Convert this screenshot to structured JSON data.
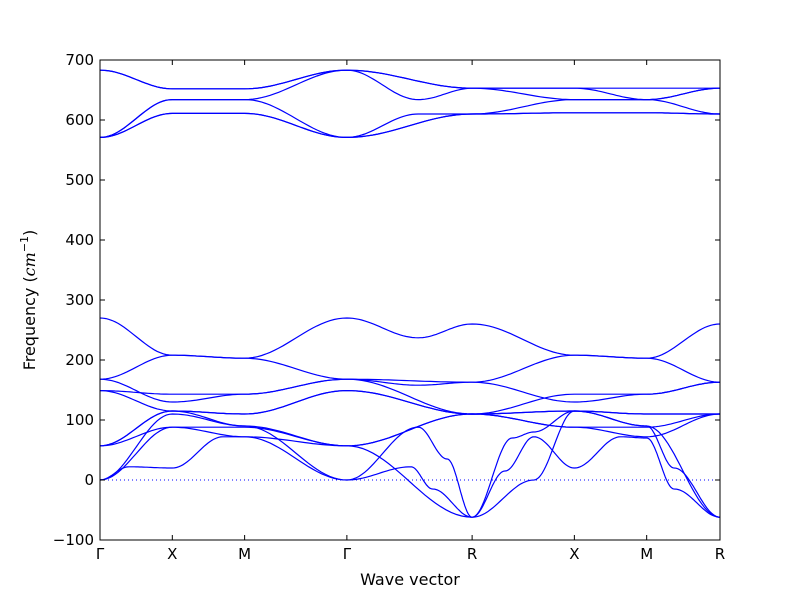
{
  "chart_data": {
    "type": "line",
    "title": "",
    "xlabel": "Wave vector",
    "ylabel_text": "Frequency (",
    "ylabel_unit": "cm",
    "ylabel_exp": "−1",
    "ylabel_close": ")",
    "ylim": [
      -100,
      700
    ],
    "yticks": [
      -100,
      0,
      100,
      200,
      300,
      400,
      500,
      600,
      700
    ],
    "ytick_labels": [
      "−100",
      "0",
      "100",
      "200",
      "300",
      "400",
      "500",
      "600",
      "700"
    ],
    "grid": false,
    "zero_line": true,
    "band_color": "#0000ff",
    "kpoints": [
      {
        "label": "Γ",
        "x": 0.0
      },
      {
        "label": "X",
        "x": 0.5
      },
      {
        "label": "M",
        "x": 1.0
      },
      {
        "label": "Γ",
        "x": 1.707
      },
      {
        "label": "R",
        "x": 2.573
      },
      {
        "label": "X",
        "x": 3.28
      },
      {
        "label": "M",
        "x": 3.78
      },
      {
        "label": "R",
        "x": 4.287
      }
    ],
    "xlim": [
      0,
      4.287
    ],
    "series": [
      {
        "x": [
          0,
          0.5,
          1.0,
          1.707,
          2.573,
          3.28,
          3.78,
          4.287
        ],
        "y": [
          683,
          652,
          652,
          683,
          653,
          653,
          653,
          653
        ]
      },
      {
        "x": [
          0,
          0.5,
          1.0,
          1.707,
          2.573,
          3.28,
          3.78,
          4.287
        ],
        "y": [
          683,
          652,
          652,
          683,
          653,
          634,
          634,
          653
        ]
      },
      {
        "x": [
          0,
          0.5,
          1.0,
          1.707,
          2.2,
          2.573,
          3.28,
          3.78,
          4.287
        ],
        "y": [
          571,
          634,
          634,
          683,
          634,
          653,
          653,
          634,
          653
        ]
      },
      {
        "x": [
          0,
          0.5,
          1.0,
          1.707,
          2.2,
          2.573,
          3.28,
          3.78,
          4.287
        ],
        "y": [
          571,
          634,
          634,
          571,
          610,
          610,
          634,
          634,
          610
        ]
      },
      {
        "x": [
          0,
          0.5,
          1.0,
          1.707,
          2.573,
          3.28,
          3.78,
          4.287
        ],
        "y": [
          571,
          611,
          611,
          571,
          610,
          612,
          612,
          610
        ]
      },
      {
        "x": [
          0,
          0.5,
          1.0,
          1.707,
          2.573,
          3.28,
          3.78,
          4.287
        ],
        "y": [
          571,
          611,
          611,
          571,
          610,
          612,
          612,
          610
        ]
      },
      {
        "x": [
          0,
          0.5,
          1.0,
          1.707,
          2.2,
          2.573,
          3.28,
          3.78,
          4.287
        ],
        "y": [
          270,
          208,
          203,
          270,
          237,
          260,
          208,
          203,
          260
        ]
      },
      {
        "x": [
          0,
          0.5,
          1.0,
          1.707,
          2.2,
          2.573,
          3.28,
          3.78,
          4.287
        ],
        "y": [
          168,
          208,
          203,
          168,
          158,
          163,
          208,
          203,
          163
        ]
      },
      {
        "x": [
          0,
          0.5,
          1.0,
          1.707,
          2.573,
          3.28,
          3.78,
          4.287
        ],
        "y": [
          168,
          130,
          143,
          168,
          163,
          130,
          143,
          163
        ]
      },
      {
        "x": [
          0,
          0.5,
          1.0,
          1.707,
          2.573,
          3.28,
          3.78,
          4.287
        ],
        "y": [
          149,
          143,
          143,
          168,
          110,
          143,
          143,
          163
        ]
      },
      {
        "x": [
          0,
          0.5,
          1.0,
          1.707,
          2.573,
          3.28,
          3.78,
          4.287
        ],
        "y": [
          149,
          115,
          110,
          149,
          110,
          115,
          110,
          110
        ]
      },
      {
        "x": [
          0,
          0.5,
          1.0,
          1.707,
          2.573,
          3.28,
          3.78,
          4.287
        ],
        "y": [
          57,
          115,
          110,
          149,
          110,
          115,
          110,
          110
        ]
      },
      {
        "x": [
          0,
          0.5,
          1.0,
          1.707,
          2.573,
          3.28,
          3.78,
          4.287
        ],
        "y": [
          57,
          88,
          88,
          57,
          110,
          88,
          88,
          110
        ]
      },
      {
        "x": [
          0,
          0.5,
          1.0,
          1.707,
          2.573,
          3.28,
          3.78,
          4.287
        ],
        "y": [
          0,
          88,
          72,
          57,
          110,
          88,
          72,
          110
        ]
      },
      {
        "x": [
          0,
          0.2,
          0.5,
          0.85,
          1.0,
          1.707,
          2.15,
          2.3,
          2.573,
          2.8,
          3.0,
          3.28,
          3.6,
          3.78,
          3.97,
          4.287
        ],
        "y": [
          0,
          22,
          20,
          72,
          72,
          0,
          22,
          -15,
          -62,
          15,
          72,
          20,
          72,
          70,
          -15,
          -62
        ]
      },
      {
        "x": [
          0,
          0.5,
          1.0,
          1.707,
          2.2,
          2.4,
          2.573,
          2.85,
          3.0,
          3.28,
          3.78,
          3.97,
          4.287
        ],
        "y": [
          0,
          110,
          90,
          0,
          88,
          35,
          -62,
          70,
          80,
          115,
          90,
          20,
          -62
        ]
      },
      {
        "x": [
          0,
          0.5,
          1.0,
          1.707,
          2.573,
          3.0,
          3.28,
          3.78,
          4.287
        ],
        "y": [
          57,
          115,
          90,
          57,
          -62,
          0,
          115,
          90,
          -62
        ]
      }
    ]
  }
}
